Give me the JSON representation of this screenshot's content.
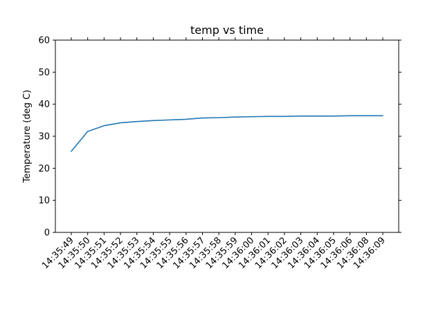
{
  "chart_data": {
    "type": "line",
    "title": "temp vs time",
    "xlabel": "",
    "ylabel": "Temperature (deg C)",
    "ylim": [
      0,
      60
    ],
    "yticks": [
      0,
      10,
      20,
      30,
      40,
      50,
      60
    ],
    "grid": false,
    "legend": "none",
    "line_color": "#1f77b4",
    "x": [
      "14:35:49",
      "14:35:50",
      "14:35:51",
      "14:35:52",
      "14:35:53",
      "14:35:54",
      "14:35:55",
      "14:35:56",
      "14:35:57",
      "14:35:58",
      "14:35:59",
      "14:36:00",
      "14:36:01",
      "14:36:02",
      "14:36:03",
      "14:36:04",
      "14:36:05",
      "14:36:06",
      "14:36:08",
      "14:36:09"
    ],
    "series": [
      {
        "values": [
          25.3,
          31.5,
          33.3,
          34.2,
          34.6,
          34.9,
          35.1,
          35.3,
          35.7,
          35.8,
          36.0,
          36.1,
          36.2,
          36.2,
          36.3,
          36.3,
          36.3,
          36.4,
          36.4,
          36.4
        ]
      }
    ]
  }
}
